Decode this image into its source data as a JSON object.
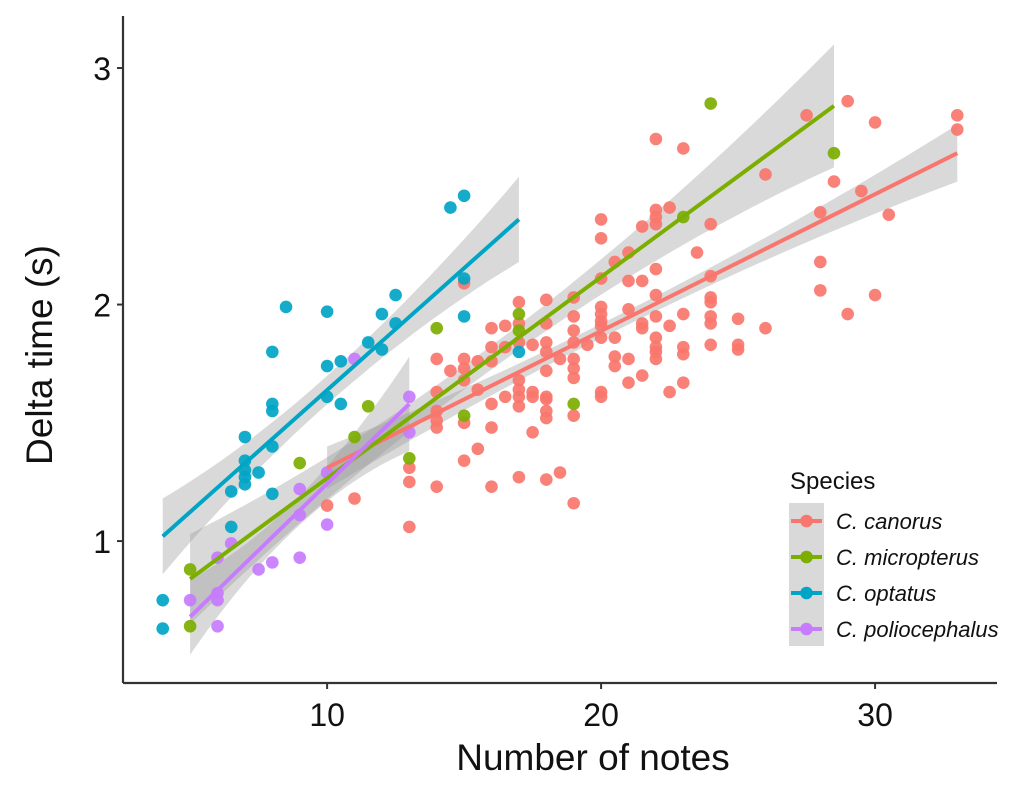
{
  "chart_data": {
    "type": "scatter",
    "title": "",
    "xlabel": "Number of notes",
    "ylabel": "Delta time (s)",
    "xlim": [
      2.55,
      34.45
    ],
    "ylim": [
      0.4,
      3.22
    ],
    "xticks": [
      10,
      20,
      30
    ],
    "xtick_labels": [
      "10",
      "20",
      "30"
    ],
    "yticks": [
      1,
      2,
      3
    ],
    "ytick_labels": [
      "1",
      "2",
      "3"
    ],
    "grid": false,
    "legend": {
      "title": "Species",
      "position": "bottom-right",
      "entries": [
        "C. canorus",
        "C. micropterus",
        "C. optatus",
        "C. poliocephalus"
      ]
    },
    "series": [
      {
        "name": "C. canorus",
        "color": "#F8766D",
        "fit": {
          "x": [
            10,
            33
          ],
          "y": [
            1.31,
            2.64
          ],
          "ci_halfwidth": [
            0.09,
            0.03,
            0.12
          ]
        },
        "points": [
          [
            10,
            1.15
          ],
          [
            11,
            1.18
          ],
          [
            13,
            1.06
          ],
          [
            13,
            1.25
          ],
          [
            13,
            1.31
          ],
          [
            14,
            1.23
          ],
          [
            14,
            1.48
          ],
          [
            14,
            1.51
          ],
          [
            14,
            1.55
          ],
          [
            14,
            1.63
          ],
          [
            14,
            1.77
          ],
          [
            14.5,
            1.72
          ],
          [
            15,
            1.34
          ],
          [
            15,
            1.5
          ],
          [
            15,
            1.68
          ],
          [
            15,
            1.73
          ],
          [
            15,
            1.77
          ],
          [
            15,
            2.09
          ],
          [
            15.5,
            1.39
          ],
          [
            15.5,
            1.64
          ],
          [
            15.5,
            1.76
          ],
          [
            16,
            1.23
          ],
          [
            16,
            1.48
          ],
          [
            16,
            1.58
          ],
          [
            16,
            1.76
          ],
          [
            16,
            1.82
          ],
          [
            16,
            1.9
          ],
          [
            16.5,
            1.61
          ],
          [
            16.5,
            1.82
          ],
          [
            16.5,
            1.91
          ],
          [
            17,
            1.27
          ],
          [
            17,
            1.57
          ],
          [
            17,
            1.61
          ],
          [
            17,
            1.64
          ],
          [
            17,
            1.68
          ],
          [
            17,
            1.84
          ],
          [
            17,
            1.92
          ],
          [
            17,
            2.01
          ],
          [
            17.5,
            1.46
          ],
          [
            17.5,
            1.61
          ],
          [
            17.5,
            1.63
          ],
          [
            17.5,
            1.83
          ],
          [
            18,
            1.26
          ],
          [
            18,
            1.52
          ],
          [
            18,
            1.55
          ],
          [
            18,
            1.6
          ],
          [
            18,
            1.61
          ],
          [
            18,
            1.72
          ],
          [
            18,
            1.8
          ],
          [
            18,
            1.84
          ],
          [
            18,
            1.92
          ],
          [
            18,
            2.02
          ],
          [
            18.5,
            1.29
          ],
          [
            18.5,
            1.77
          ],
          [
            19,
            1.16
          ],
          [
            19,
            1.53
          ],
          [
            19,
            1.69
          ],
          [
            19,
            1.73
          ],
          [
            19,
            1.77
          ],
          [
            19,
            1.84
          ],
          [
            19,
            1.89
          ],
          [
            19,
            1.95
          ],
          [
            19,
            2.03
          ],
          [
            19.5,
            1.83
          ],
          [
            20,
            1.61
          ],
          [
            20,
            1.63
          ],
          [
            20,
            1.86
          ],
          [
            20,
            1.91
          ],
          [
            20,
            1.93
          ],
          [
            20,
            1.96
          ],
          [
            20,
            1.99
          ],
          [
            20,
            2.11
          ],
          [
            20,
            2.28
          ],
          [
            20,
            2.36
          ],
          [
            20.5,
            1.74
          ],
          [
            20.5,
            1.78
          ],
          [
            20.5,
            1.86
          ],
          [
            20.5,
            2.18
          ],
          [
            21,
            1.67
          ],
          [
            21,
            1.77
          ],
          [
            21,
            1.98
          ],
          [
            21,
            2.1
          ],
          [
            21,
            2.22
          ],
          [
            21.5,
            1.7
          ],
          [
            21.5,
            1.9
          ],
          [
            21.5,
            1.92
          ],
          [
            21.5,
            2.1
          ],
          [
            21.5,
            2.33
          ],
          [
            22,
            1.77
          ],
          [
            22,
            1.8
          ],
          [
            22,
            1.82
          ],
          [
            22,
            1.86
          ],
          [
            22,
            1.95
          ],
          [
            22,
            2.04
          ],
          [
            22,
            2.15
          ],
          [
            22,
            2.34
          ],
          [
            22,
            2.37
          ],
          [
            22,
            2.4
          ],
          [
            22,
            2.7
          ],
          [
            22.5,
            1.63
          ],
          [
            22.5,
            1.91
          ],
          [
            22.5,
            2.41
          ],
          [
            23,
            1.67
          ],
          [
            23,
            1.79
          ],
          [
            23,
            1.82
          ],
          [
            23,
            1.96
          ],
          [
            23,
            2.66
          ],
          [
            23.5,
            2.22
          ],
          [
            24,
            1.83
          ],
          [
            24,
            1.92
          ],
          [
            24,
            1.95
          ],
          [
            24,
            2.01
          ],
          [
            24,
            2.03
          ],
          [
            24,
            2.12
          ],
          [
            24,
            2.34
          ],
          [
            25,
            1.81
          ],
          [
            25,
            1.83
          ],
          [
            25,
            1.94
          ],
          [
            26,
            1.9
          ],
          [
            26,
            2.55
          ],
          [
            27.5,
            2.8
          ],
          [
            28,
            2.06
          ],
          [
            28,
            2.18
          ],
          [
            28,
            2.39
          ],
          [
            28.5,
            2.52
          ],
          [
            29,
            1.96
          ],
          [
            29,
            2.86
          ],
          [
            29.5,
            2.48
          ],
          [
            30,
            2.04
          ],
          [
            30,
            2.77
          ],
          [
            30.5,
            2.38
          ],
          [
            33,
            2.74
          ],
          [
            33,
            2.8
          ]
        ]
      },
      {
        "name": "C. micropterus",
        "color": "#7CAE00",
        "fit": {
          "x": [
            5,
            28.5
          ],
          "y": [
            0.84,
            2.84
          ],
          "ci_halfwidth": [
            0.19,
            0.05,
            0.26
          ]
        },
        "points": [
          [
            5,
            0.64
          ],
          [
            5,
            0.88
          ],
          [
            9,
            1.33
          ],
          [
            11,
            1.44
          ],
          [
            11.5,
            1.57
          ],
          [
            13,
            1.35
          ],
          [
            14,
            1.9
          ],
          [
            15,
            1.53
          ],
          [
            17,
            1.89
          ],
          [
            17,
            1.96
          ],
          [
            19,
            1.58
          ],
          [
            23,
            2.37
          ],
          [
            24,
            2.85
          ],
          [
            28.5,
            2.64
          ]
        ]
      },
      {
        "name": "C. optatus",
        "color": "#00A5C6",
        "fit": {
          "x": [
            4,
            17
          ],
          "y": [
            1.02,
            2.36
          ],
          "ci_halfwidth": [
            0.16,
            0.06,
            0.18
          ]
        },
        "points": [
          [
            4,
            0.63
          ],
          [
            4,
            0.75
          ],
          [
            6.5,
            1.06
          ],
          [
            6.5,
            1.21
          ],
          [
            7,
            1.24
          ],
          [
            7,
            1.27
          ],
          [
            7,
            1.3
          ],
          [
            7,
            1.34
          ],
          [
            7,
            1.44
          ],
          [
            7.5,
            1.29
          ],
          [
            8,
            1.2
          ],
          [
            8,
            1.4
          ],
          [
            8,
            1.55
          ],
          [
            8,
            1.58
          ],
          [
            8,
            1.8
          ],
          [
            8.5,
            1.99
          ],
          [
            10,
            1.61
          ],
          [
            10,
            1.74
          ],
          [
            10,
            1.97
          ],
          [
            10.5,
            1.58
          ],
          [
            10.5,
            1.76
          ],
          [
            11.5,
            1.84
          ],
          [
            12,
            1.81
          ],
          [
            12,
            1.96
          ],
          [
            12.5,
            1.92
          ],
          [
            12.5,
            2.04
          ],
          [
            14.5,
            2.41
          ],
          [
            15,
            1.95
          ],
          [
            15,
            2.11
          ],
          [
            15,
            2.46
          ],
          [
            17,
            1.8
          ]
        ]
      },
      {
        "name": "C. poliocephalus",
        "color": "#C77CFF",
        "fit": {
          "x": [
            5,
            13
          ],
          "y": [
            0.68,
            1.58
          ],
          "ci_halfwidth": [
            0.16,
            0.06,
            0.2
          ]
        },
        "points": [
          [
            5,
            0.75
          ],
          [
            6,
            0.64
          ],
          [
            6,
            0.75
          ],
          [
            6,
            0.78
          ],
          [
            6,
            0.93
          ],
          [
            6.5,
            0.99
          ],
          [
            7.5,
            0.88
          ],
          [
            8,
            0.91
          ],
          [
            9,
            0.93
          ],
          [
            9,
            1.11
          ],
          [
            9,
            1.22
          ],
          [
            10,
            1.07
          ],
          [
            10,
            1.29
          ],
          [
            11,
            1.77
          ],
          [
            13,
            1.46
          ],
          [
            13,
            1.61
          ]
        ]
      }
    ]
  }
}
